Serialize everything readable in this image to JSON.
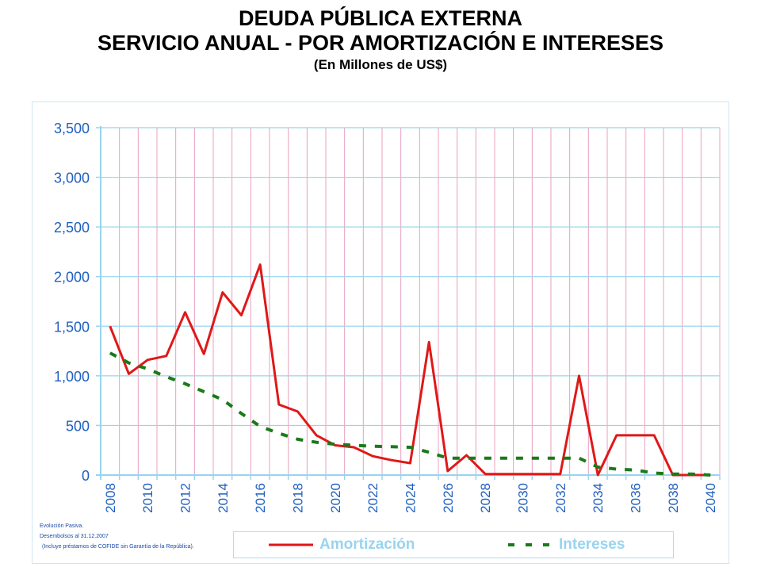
{
  "chart_data": {
    "type": "line",
    "title": "DEUDA PÚBLICA EXTERNA",
    "subtitle": "SERVICIO ANUAL - POR AMORTIZACIÓN E INTERESES",
    "units": "(En Millones de US$)",
    "xlabel": "",
    "ylabel": "",
    "ylim": [
      0,
      3500
    ],
    "yticks": [
      0,
      500,
      1000,
      1500,
      2000,
      2500,
      3000,
      3500
    ],
    "ytick_labels": [
      "0",
      "500",
      "1,000",
      "1,500",
      "2,000",
      "2,500",
      "3,000",
      "3,500"
    ],
    "xlim": [
      2008,
      2040
    ],
    "xtick_labels": [
      "2008",
      "2010",
      "2012",
      "2014",
      "2016",
      "2018",
      "2020",
      "2022",
      "2024",
      "2026",
      "2028",
      "2030",
      "2032",
      "2034",
      "2036",
      "2038",
      "2040"
    ],
    "grid": true,
    "legend_position": "bottom",
    "x": [
      2008,
      2009,
      2010,
      2011,
      2012,
      2013,
      2014,
      2015,
      2016,
      2017,
      2018,
      2019,
      2020,
      2021,
      2022,
      2023,
      2024,
      2025,
      2026,
      2027,
      2028,
      2029,
      2030,
      2031,
      2032,
      2033,
      2034,
      2035,
      2036,
      2037,
      2038,
      2039,
      2040
    ],
    "series": [
      {
        "name": "Amortización",
        "color": "#e01818",
        "style": "solid",
        "values": [
          1500,
          1020,
          1160,
          1200,
          1640,
          1220,
          1840,
          1610,
          2120,
          710,
          640,
          400,
          300,
          280,
          190,
          150,
          120,
          1340,
          40,
          200,
          10,
          10,
          10,
          10,
          10,
          1000,
          0,
          400,
          400,
          400,
          0,
          0,
          0
        ]
      },
      {
        "name": "Intereses",
        "color": "#1a7a1a",
        "style": "dashed",
        "values": [
          1230,
          1130,
          1070,
          990,
          920,
          840,
          760,
          620,
          490,
          420,
          360,
          330,
          310,
          300,
          290,
          285,
          280,
          230,
          170,
          170,
          170,
          170,
          170,
          170,
          170,
          170,
          80,
          60,
          50,
          20,
          10,
          10,
          0
        ]
      }
    ]
  },
  "notes": {
    "line1": "Evolución Pasiva.",
    "line2": "Desembolsos al 31.12.2007",
    "line3": "(Incluye préstamos de COFIDE sin Garantía de la República)."
  },
  "legend": {
    "label_color": "#99d4ef"
  }
}
